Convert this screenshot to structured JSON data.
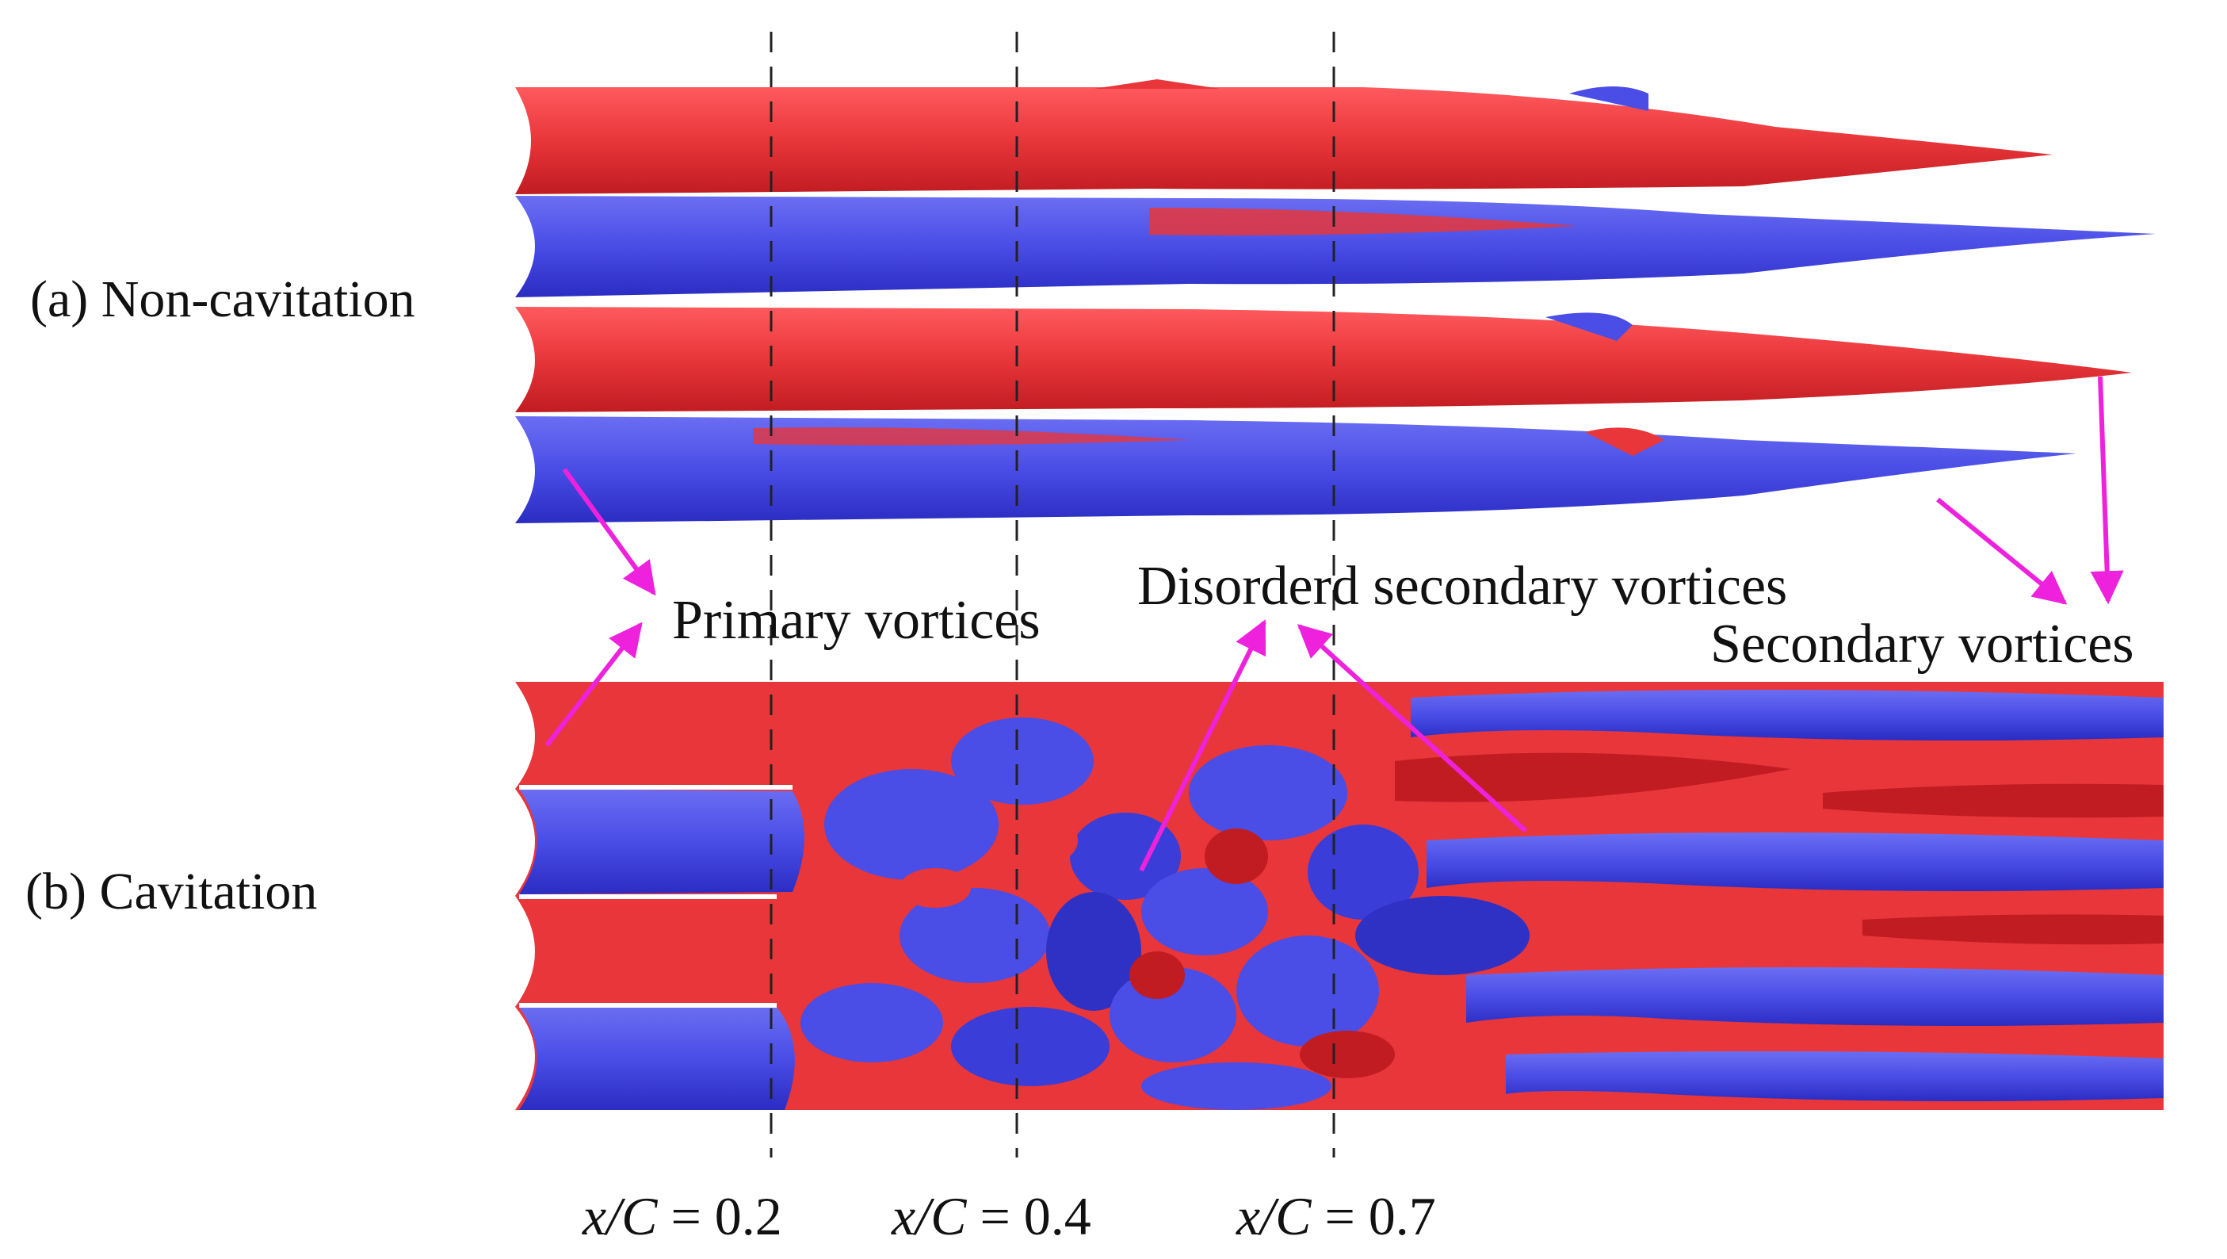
{
  "panels": {
    "a": {
      "label": "(a) Non-cavitation"
    },
    "b": {
      "label": "(b) Cavitation"
    }
  },
  "annotations": {
    "primary": "Primary  vortices",
    "disordered": "Disorderd secondary vortices",
    "secondary": "Secondary  vortices"
  },
  "positions": [
    {
      "var": "x/C",
      "eq": " = ",
      "value": "0.2"
    },
    {
      "var": "x/C",
      "eq": " = ",
      "value": "0.4"
    },
    {
      "var": "x/C",
      "eq": " = ",
      "value": "0.7"
    }
  ],
  "colors": {
    "positive_vorticity": "#e8363a",
    "negative_vorticity": "#4a4de6",
    "arrow": "#ee22dd",
    "dashed_line": "#222222"
  }
}
